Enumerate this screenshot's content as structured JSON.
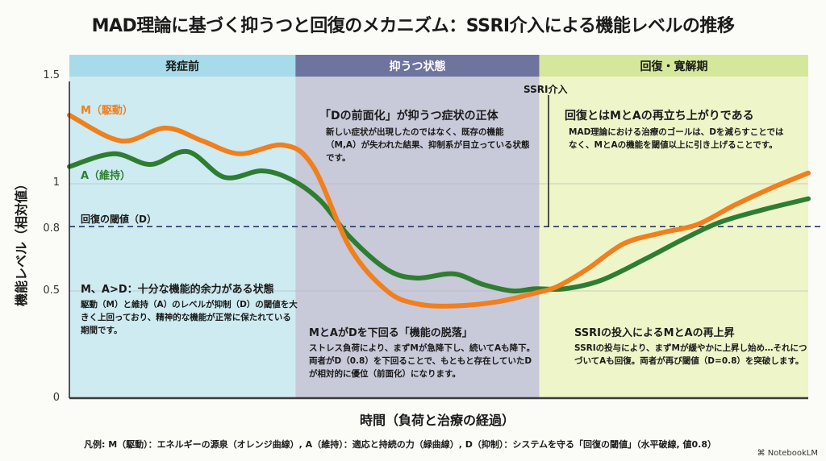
{
  "title": "MAD理論に基づく抑うつと回復のメカニズム：SSRI介入による機能レベルの推移",
  "chart_data": {
    "type": "line",
    "title": "MAD理論に基づく抑うつと回復のメカニズム：SSRI介入による機能レベルの推移",
    "xlabel": "時間（負荷と治療の経過）",
    "ylabel": "機能レベル（相対値）",
    "ylim": [
      0,
      1.5
    ],
    "xlim": [
      0,
      100
    ],
    "yticks": [
      "0",
      "0.5",
      "0.8",
      "1",
      "1.5"
    ],
    "ytick_values": [
      0,
      0.5,
      0.8,
      1,
      1.5
    ],
    "grid": true,
    "phases": [
      {
        "name": "発症前",
        "start": 0,
        "end": 30.6,
        "color": "#cdebf1",
        "header_color": "#a7dbe9"
      },
      {
        "name": "抑うつ状態",
        "start": 30.6,
        "end": 63.6,
        "color": "#c8c9d9",
        "header_color": "#6e749e"
      },
      {
        "name": "回復・寛解期",
        "start": 63.6,
        "end": 100,
        "color": "#eef5c9",
        "header_color": "#d5e79a"
      }
    ],
    "threshold": {
      "name": "回復の閾値（D）",
      "value": 0.8,
      "style": "dashed",
      "color": "#2b3566"
    },
    "intervention": {
      "label": "SSRI介入",
      "x": 64.8,
      "y_from": 0.8,
      "y_to": 1.42
    },
    "series": [
      {
        "name": "M（駆動）",
        "color": "#f07f1e",
        "x": [
          0,
          7,
          13,
          18,
          23,
          29,
          33,
          38,
          43,
          47,
          52,
          58,
          63,
          66,
          70,
          75,
          80,
          85,
          90,
          95,
          100
        ],
        "y": [
          1.32,
          1.2,
          1.26,
          1.2,
          1.14,
          1.18,
          1.08,
          0.7,
          0.5,
          0.44,
          0.43,
          0.45,
          0.49,
          0.52,
          0.6,
          0.72,
          0.77,
          0.81,
          0.9,
          0.98,
          1.05
        ]
      },
      {
        "name": "A（維持）",
        "color": "#2f7d32",
        "x": [
          0,
          6,
          11,
          16,
          21,
          26,
          30,
          34,
          38,
          43,
          47,
          52,
          56,
          60,
          63,
          67,
          72,
          78,
          83,
          88,
          94,
          100
        ],
        "y": [
          1.08,
          1.14,
          1.09,
          1.15,
          1.03,
          1.06,
          1.02,
          0.92,
          0.75,
          0.6,
          0.56,
          0.58,
          0.53,
          0.5,
          0.51,
          0.51,
          0.55,
          0.65,
          0.74,
          0.82,
          0.88,
          0.93
        ]
      }
    ]
  },
  "ytick_labels": {
    "t0": "0",
    "t05": "0.5",
    "t08": "0.8",
    "t1": "1",
    "t15": "1.5"
  },
  "labels": {
    "m": "M（駆動）",
    "a": "A（維持）",
    "threshold": "回復の閾値（D）",
    "ssri": "SSRI介入"
  },
  "phases": {
    "pre": "発症前",
    "dep": "抑うつ状態",
    "rec": "回復・寛解期"
  },
  "annotations": {
    "pre": {
      "heading": "M、A>D：十分な機能的余力がある状態",
      "body": "駆動（M）と維持（A）のレベルが抑制（D）の閾値を大きく上回っており、精神的な機能が正常に保たれている期間です。"
    },
    "dep_top": {
      "heading": "「Dの前面化」が抑うつ症状の正体",
      "body": "新しい症状が出現したのではなく、既存の機能（M,A）が失われた結果、抑制系が目立っている状態です。"
    },
    "dep_bottom": {
      "heading": "MとAがDを下回る「機能の脱落」",
      "body": "ストレス負荷により、まずMが急降下し、続いてAも降下。両者がD（0.8）を下回ることで、もともと存在していたDが相対的に優位（前面化）になります。"
    },
    "rec_top": {
      "heading": "回復とはMとAの再立ち上がりである",
      "body": "MAD理論における治療のゴールは、Dを減らすことではなく、MとAの機能を閾値以上に引き上げることです。"
    },
    "rec_bottom": {
      "heading": "SSRIの投入によるMとAの再上昇",
      "body": "SSRIの投与により、まずMが緩やかに上昇し始め…それにつづいてAも回復。両者が再び閾値（D=0.8）を突破します。"
    }
  },
  "xlabel": "時間（負荷と治療の経過）",
  "ylabel": "機能レベル（相対値）",
  "legend": "凡例: M（駆動）：エネルギーの源泉（オレンジ曲線）, A（維持）：適応と持続の力（緑曲線）, D（抑制）：システムを守る「回復の閾値」（水平破線, 値0.8）",
  "brand": "NotebookLM"
}
